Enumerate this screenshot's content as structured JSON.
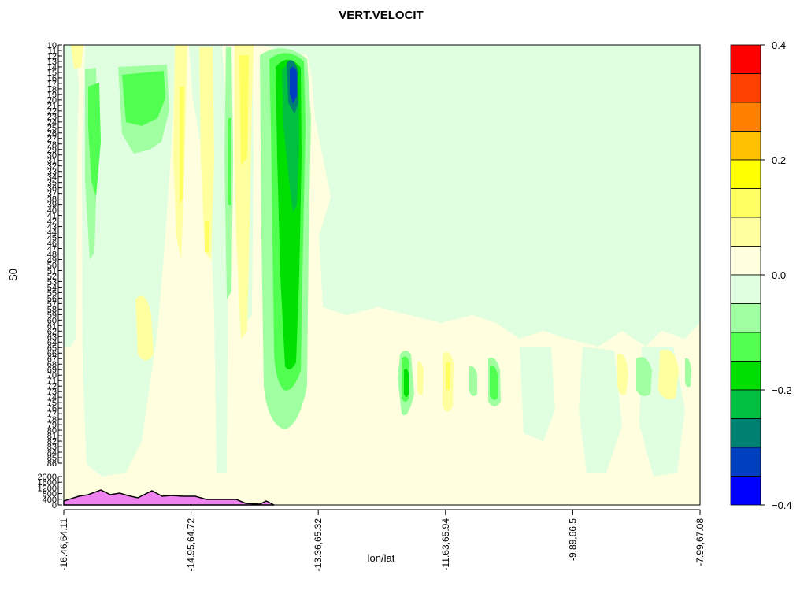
{
  "chart_data": {
    "type": "heatmap",
    "title": "VERT.VELOCIT",
    "xlabel": "lon/lat",
    "ylabel": "S0",
    "x_ticks": [
      "-16.46,64.11",
      "-14.95,64.72",
      "-13.36,65.32",
      "-11.63,65.94",
      "-9.89,66.5",
      "-7.99,67.08"
    ],
    "y_ticks": [
      "10",
      "11",
      "12",
      "13",
      "14",
      "15",
      "16",
      "17",
      "18",
      "19",
      "20",
      "21",
      "22",
      "23",
      "24",
      "25",
      "26",
      "27",
      "28",
      "29",
      "30",
      "31",
      "32",
      "33",
      "34",
      "35",
      "36",
      "37",
      "38",
      "39",
      "40",
      "41",
      "42",
      "43",
      "44",
      "45",
      "46",
      "47",
      "48",
      "49",
      "50",
      "51",
      "52",
      "53",
      "54",
      "55",
      "56",
      "57",
      "58",
      "59",
      "60",
      "61",
      "62",
      "63",
      "64",
      "65",
      "66",
      "67",
      "68",
      "69",
      "70",
      "71",
      "72",
      "73",
      "74",
      "75",
      "76",
      "77",
      "78",
      "79",
      "80",
      "81",
      "82",
      "83",
      "84",
      "85",
      "86"
    ],
    "y_ticks_height": [
      "2000",
      "1600",
      "1200",
      "800",
      "400",
      "0"
    ],
    "colorbar": {
      "ticks": [
        "0.4",
        "0.2",
        "0.0",
        "−0.2",
        "−0.4"
      ],
      "range": [
        -0.4,
        0.4
      ],
      "colors_top_to_bottom": [
        "#ff0000",
        "#ff4000",
        "#ff8000",
        "#ffc000",
        "#ffff00",
        "#ffff60",
        "#ffffa0",
        "#ffffe0",
        "#e0ffe0",
        "#a0ffa0",
        "#50ff50",
        "#00e000",
        "#00c040",
        "#008070",
        "#0040c0",
        "#0000ff"
      ]
    },
    "colors": {
      "background_field": "#ffffe0",
      "terrain": "#ee82ee"
    }
  }
}
